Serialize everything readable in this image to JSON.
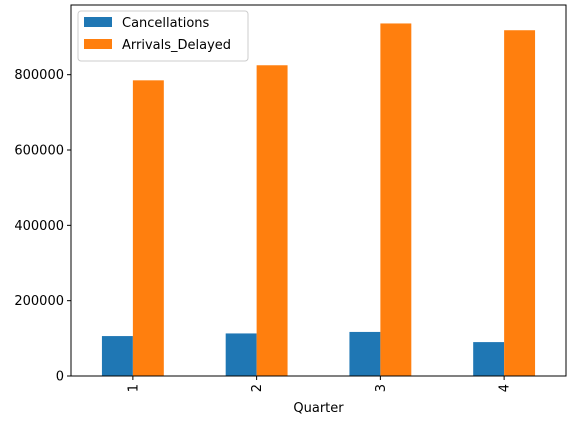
{
  "chart_data": {
    "type": "bar",
    "title": "",
    "xlabel": "Quarter",
    "ylabel": "",
    "categories": [
      "1",
      "2",
      "3",
      "4"
    ],
    "series": [
      {
        "name": "Cancellations",
        "color": "#1f77b4",
        "values": [
          106000,
          113000,
          117000,
          90000
        ]
      },
      {
        "name": "Arrivals_Delayed",
        "color": "#ff7f0e",
        "values": [
          785000,
          825000,
          936000,
          918000
        ]
      }
    ],
    "ylim": [
      0,
      985000
    ],
    "yticks": [
      0,
      200000,
      400000,
      600000,
      800000
    ],
    "ytick_labels": [
      "0",
      "200000",
      "400000",
      "600000",
      "800000"
    ],
    "grid": false,
    "legend_position": "top-left",
    "xtick_rotation": "vertical"
  }
}
